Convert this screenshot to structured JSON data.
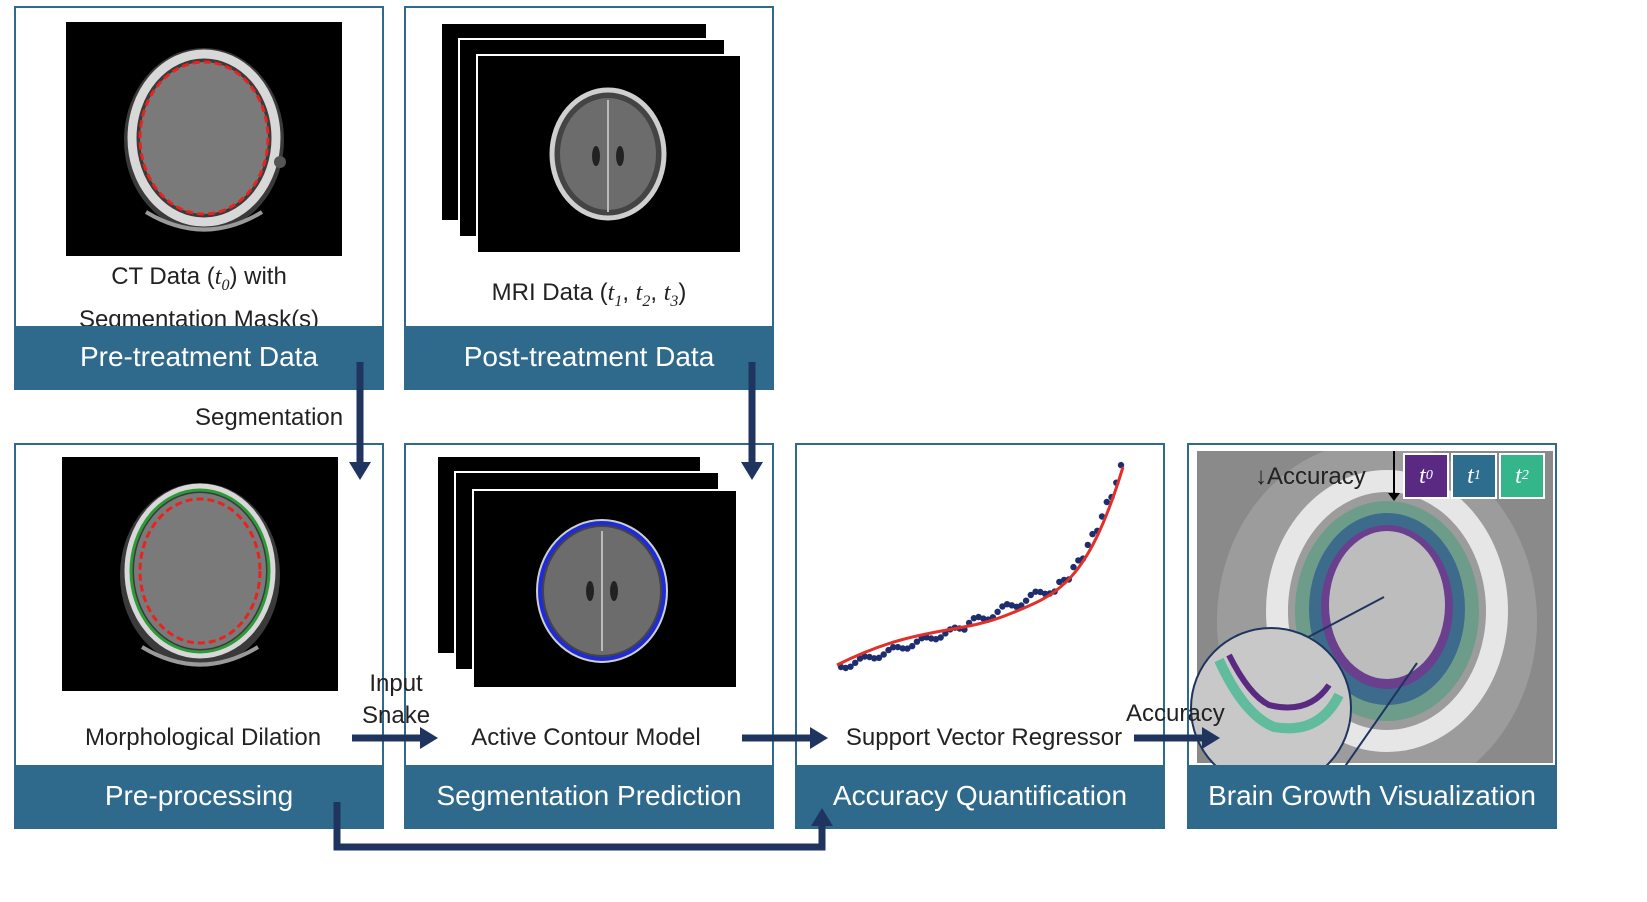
{
  "panels": {
    "pre_treatment": {
      "title": "Pre-treatment Data",
      "caption_line1": "CT Data (",
      "caption_t": "t",
      "caption_sub": "0",
      "caption_line1_end": ") with",
      "caption_line2": "Segmentation Mask(s)"
    },
    "post_treatment": {
      "title": "Post-treatment Data",
      "caption_prefix": "MRI Data (",
      "t1": "t",
      "s1": "1",
      "t2": "t",
      "s2": "2",
      "t3": "t",
      "s3": "3",
      "caption_suffix": ")",
      "sep1": ", ",
      "sep2": ", "
    },
    "pre_processing": {
      "title": "Pre-processing",
      "caption": "Morphological Dilation"
    },
    "segmentation_prediction": {
      "title": "Segmentation Prediction",
      "caption": "Active Contour Model"
    },
    "accuracy_quantification": {
      "title": "Accuracy Quantification",
      "caption": "Support Vector Regressor"
    },
    "brain_growth": {
      "title": "Brain Growth Visualization",
      "accuracy_label": "↓Accuracy",
      "legend": [
        {
          "t": "t",
          "sub": "0",
          "color": "#5a2a82"
        },
        {
          "t": "t",
          "sub": "1",
          "color": "#2e6d8e"
        },
        {
          "t": "t",
          "sub": "2",
          "color": "#35b58a"
        }
      ]
    }
  },
  "arrows": {
    "segmentation": "Segmentation",
    "input_snake_line1": "Input",
    "input_snake_line2": "Snake",
    "accuracy": "Accuracy"
  },
  "colors": {
    "panel_blue": "#2f6a8c",
    "arrow_navy": "#1f3560",
    "mask_red": "#e8231f",
    "dilation_green": "#2e9a3a",
    "snake_blue": "#1f2bd6",
    "svr_curve": "#e0302a",
    "svr_points": "#1e2d6e"
  }
}
